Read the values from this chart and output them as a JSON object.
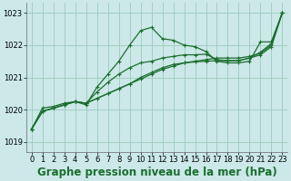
{
  "background_color": "#cce8e8",
  "grid_color": "#99ccbb",
  "line_color": "#1a6e2e",
  "title": "Graphe pression niveau de la mer (hPa)",
  "xlim": [
    -0.5,
    23.5
  ],
  "ylim": [
    1018.7,
    1023.3
  ],
  "yticks": [
    1019,
    1020,
    1021,
    1022,
    1023
  ],
  "xticks": [
    0,
    1,
    2,
    3,
    4,
    5,
    6,
    7,
    8,
    9,
    10,
    11,
    12,
    13,
    14,
    15,
    16,
    17,
    18,
    19,
    20,
    21,
    22,
    23
  ],
  "series": [
    {
      "x": [
        0,
        1,
        2,
        3,
        4,
        5,
        6,
        7,
        8,
        9,
        10,
        11,
        12,
        13,
        14,
        15,
        16,
        17,
        18,
        19,
        20,
        21,
        22,
        23
      ],
      "y": [
        1019.4,
        1019.95,
        1020.05,
        1020.15,
        1020.25,
        1020.15,
        1020.7,
        1021.1,
        1021.5,
        1022.0,
        1022.45,
        1022.55,
        1022.2,
        1022.15,
        1022.0,
        1021.95,
        1021.8,
        1021.5,
        1021.45,
        1021.45,
        1021.5,
        1022.1,
        1022.1,
        1023.0
      ]
    },
    {
      "x": [
        0,
        1,
        2,
        3,
        4,
        5,
        6,
        7,
        8,
        9,
        10,
        11,
        12,
        13,
        14,
        15,
        16,
        17,
        18,
        19,
        20,
        21,
        22,
        23
      ],
      "y": [
        1019.4,
        1019.95,
        1020.05,
        1020.15,
        1020.25,
        1020.2,
        1020.35,
        1020.5,
        1020.65,
        1020.8,
        1020.95,
        1021.1,
        1021.25,
        1021.35,
        1021.45,
        1021.5,
        1021.55,
        1021.6,
        1021.6,
        1021.6,
        1021.65,
        1021.75,
        1022.0,
        1023.0
      ]
    },
    {
      "x": [
        0,
        1,
        2,
        3,
        4,
        5,
        6,
        7,
        8,
        9,
        10,
        11,
        12,
        13,
        14,
        15,
        16,
        17,
        18,
        19,
        20,
        21,
        22,
        23
      ],
      "y": [
        1019.4,
        1019.95,
        1020.05,
        1020.15,
        1020.25,
        1020.2,
        1020.35,
        1020.5,
        1020.65,
        1020.8,
        1021.0,
        1021.15,
        1021.3,
        1021.4,
        1021.45,
        1021.48,
        1021.5,
        1021.52,
        1021.52,
        1021.52,
        1021.6,
        1021.7,
        1021.95,
        1023.0
      ]
    },
    {
      "x": [
        0,
        1,
        2,
        3,
        4,
        5,
        6,
        7,
        8,
        9,
        10,
        11,
        12,
        13,
        14,
        15,
        16,
        17,
        18,
        19,
        20,
        21,
        22,
        23
      ],
      "y": [
        1019.4,
        1020.05,
        1020.1,
        1020.2,
        1020.25,
        1020.2,
        1020.55,
        1020.85,
        1021.1,
        1021.3,
        1021.45,
        1021.5,
        1021.6,
        1021.65,
        1021.7,
        1021.7,
        1021.72,
        1021.55,
        1021.52,
        1021.52,
        1021.6,
        1021.78,
        1022.05,
        1023.0
      ]
    }
  ],
  "marker": "+",
  "markersize": 3.5,
  "linewidth": 0.9,
  "title_fontsize": 8.5,
  "tick_fontsize": 6.0
}
